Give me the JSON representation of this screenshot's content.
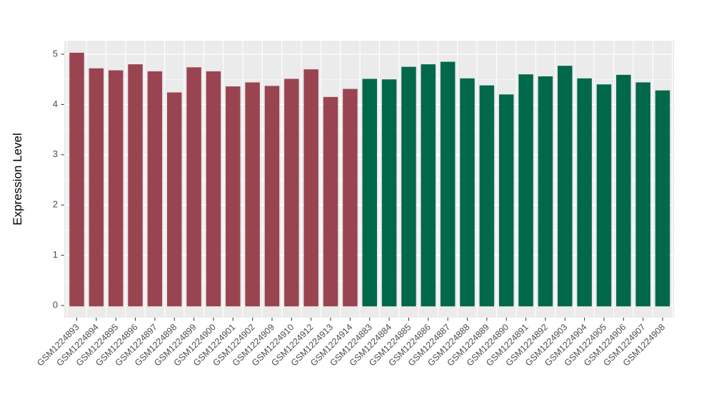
{
  "chart_data": {
    "type": "bar",
    "title": "",
    "xlabel": "",
    "ylabel": "Expression Level",
    "ylim": [
      0,
      5.25
    ],
    "yticks": [
      0,
      1,
      2,
      3,
      4,
      5
    ],
    "grid": "on",
    "legend": "none",
    "panel_bg_color": "#EBEBEB",
    "grid_color": "#FFFFFF",
    "axis_text_color": "#4D4D4D",
    "axis_title_color": "#000000",
    "tick_mark_color": "#333333",
    "group_colors": {
      "group1": "#9A4452",
      "group2": "#016849"
    },
    "categories": [
      "GSM1224893",
      "GSM1224894",
      "GSM1224895",
      "GSM1224896",
      "GSM1224897",
      "GSM1224898",
      "GSM1224899",
      "GSM1224900",
      "GSM1224901",
      "GSM1224902",
      "GSM1224909",
      "GSM1224910",
      "GSM1224912",
      "GSM1224913",
      "GSM1224914",
      "GSM1224883",
      "GSM1224884",
      "GSM1224885",
      "GSM1224886",
      "GSM1224887",
      "GSM1224888",
      "GSM1224889",
      "GSM1224890",
      "GSM1224891",
      "GSM1224892",
      "GSM1224903",
      "GSM1224904",
      "GSM1224905",
      "GSM1224906",
      "GSM1224907",
      "GSM1224908"
    ],
    "values": [
      5.03,
      4.72,
      4.68,
      4.8,
      4.66,
      4.24,
      4.74,
      4.66,
      4.36,
      4.44,
      4.37,
      4.51,
      4.7,
      4.15,
      4.31,
      4.51,
      4.5,
      4.75,
      4.8,
      4.85,
      4.52,
      4.38,
      4.2,
      4.6,
      4.56,
      4.77,
      4.52,
      4.4,
      4.59,
      4.44,
      4.28
    ],
    "groups": [
      "group1",
      "group1",
      "group1",
      "group1",
      "group1",
      "group1",
      "group1",
      "group1",
      "group1",
      "group1",
      "group1",
      "group1",
      "group1",
      "group1",
      "group1",
      "group2",
      "group2",
      "group2",
      "group2",
      "group2",
      "group2",
      "group2",
      "group2",
      "group2",
      "group2",
      "group2",
      "group2",
      "group2",
      "group2",
      "group2",
      "group2"
    ]
  }
}
